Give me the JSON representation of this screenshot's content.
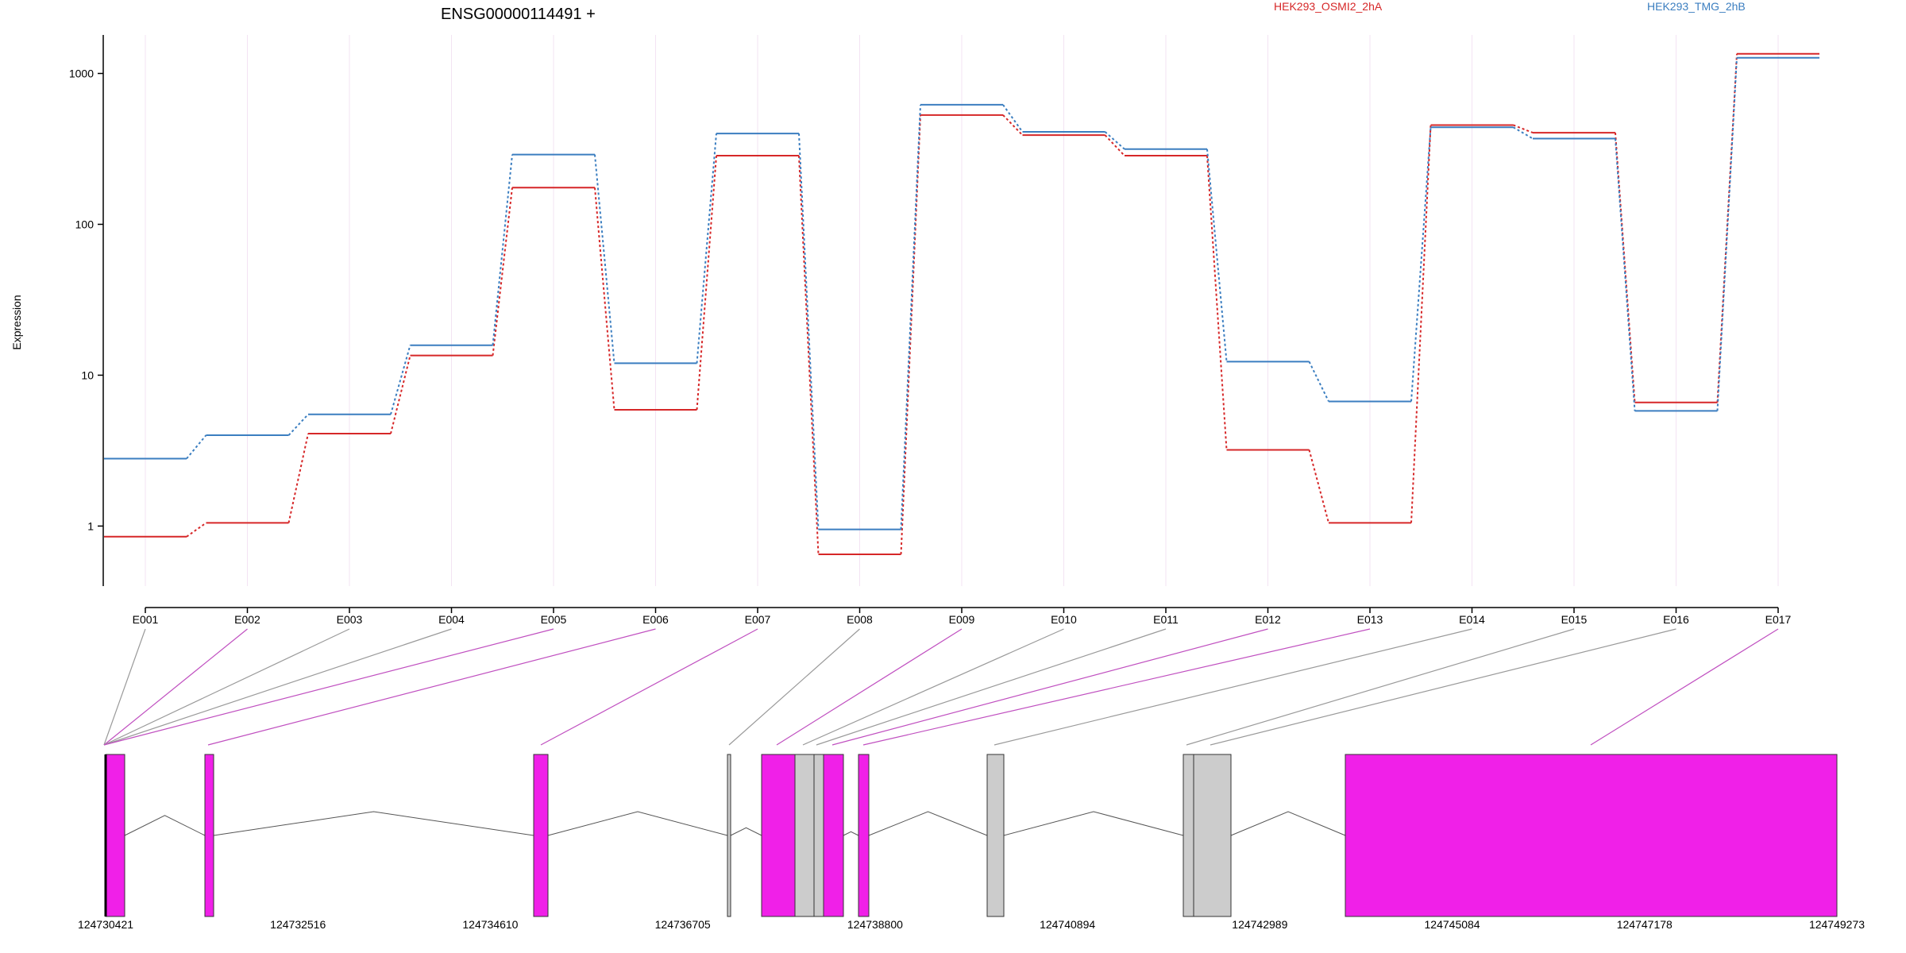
{
  "chart_data": {
    "type": "line",
    "title": "ENSG00000114491 +",
    "ylabel": "Expression",
    "y_scale": "log",
    "ylim": [
      0.4,
      1800
    ],
    "y_ticks": [
      1,
      10,
      100,
      1000
    ],
    "y_tick_labels": [
      "1",
      "10",
      "100",
      "1000"
    ],
    "categories": [
      "E001",
      "E002",
      "E003",
      "E004",
      "E005",
      "E006",
      "E007",
      "E008",
      "E009",
      "E010",
      "E011",
      "E012",
      "E013",
      "E014",
      "E015",
      "E016",
      "E017"
    ],
    "series": [
      {
        "name": "HEK293_OSMI2_2hA",
        "color": "#d62728",
        "values": [
          0.85,
          1.05,
          4.1,
          13.5,
          175,
          5.9,
          285,
          0.65,
          530,
          390,
          285,
          3.2,
          1.05,
          455,
          405,
          6.6,
          1350
        ]
      },
      {
        "name": "HEK293_TMG_2hB",
        "color": "#3b7ec0",
        "values": [
          2.8,
          4.0,
          5.5,
          15.8,
          290,
          12.0,
          400,
          0.95,
          620,
          410,
          315,
          12.3,
          6.7,
          440,
          370,
          5.8,
          1270
        ]
      }
    ],
    "gene_model": {
      "coordinate_labels": [
        "124730421",
        "124732516",
        "124734610",
        "124736705",
        "124738800",
        "124740894",
        "124742989",
        "124745084",
        "124747178",
        "124749273"
      ],
      "exon_color": "#f020e8",
      "non_exon_color": "#cccccc"
    },
    "grid": true,
    "legend": "top"
  }
}
